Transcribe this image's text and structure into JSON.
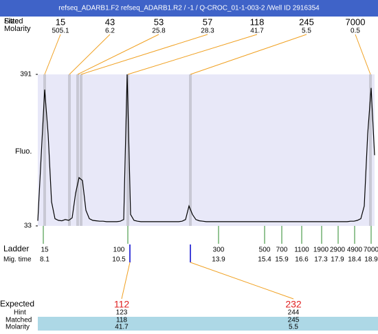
{
  "header": {
    "title": "refseq_ADARB1.F2  refseq_ADARB1.R2 / -1 / Q-CROC_01-1-003-2 /Well ID 2916354",
    "size_label": "Size",
    "fitted_label": "Fitted",
    "molarity_label": "Molarity"
  },
  "peaks": [
    {
      "size": 15,
      "molarity": 505.1
    },
    {
      "size": 43,
      "molarity": 6.2
    },
    {
      "size": 53,
      "molarity": 25.8
    },
    {
      "size": 57,
      "molarity": 28.3
    },
    {
      "size": 118,
      "molarity": 41.7
    },
    {
      "size": 245,
      "molarity": 5.5
    },
    {
      "size": 7000,
      "molarity": 0.5
    }
  ],
  "chart_data": {
    "type": "line",
    "y_label": "Fluo.",
    "ylim": [
      33,
      391
    ],
    "yticks": [
      33,
      391
    ],
    "color": "#000000",
    "values": [
      45,
      200,
      355,
      250,
      90,
      50,
      46,
      45,
      48,
      46,
      52,
      110,
      147,
      140,
      70,
      50,
      46,
      45,
      44,
      44,
      43,
      43,
      43,
      43,
      44,
      48,
      391,
      60,
      46,
      44,
      43,
      43,
      43,
      43,
      43,
      43,
      43,
      43,
      43,
      43,
      43,
      43,
      44,
      48,
      80,
      60,
      48,
      45,
      44,
      43,
      43,
      43,
      43,
      43,
      43,
      43,
      43,
      43,
      43,
      43,
      43,
      43,
      43,
      43,
      43,
      43,
      43,
      43,
      43,
      43,
      43,
      43,
      43,
      43,
      43,
      43,
      43,
      43,
      43,
      43,
      43,
      43,
      43,
      43,
      43,
      43,
      43,
      43,
      43,
      43,
      43,
      44,
      44,
      46,
      50,
      80,
      250,
      359,
      200
    ]
  },
  "ladder": {
    "label": "Ladder",
    "time_label": "Mig. time",
    "sizes": [
      15,
      100,
      300,
      500,
      700,
      1100,
      1900,
      2900,
      4900,
      7000
    ],
    "times": [
      8.1,
      10.5,
      13.9,
      15.4,
      15.9,
      16.6,
      17.3,
      17.9,
      18.4,
      18.9
    ]
  },
  "expected": {
    "label": "Expected",
    "hint_label": "Hint",
    "matched_label": "Matched",
    "molarity_label": "Molarity",
    "rows": [
      {
        "expected": 112,
        "hint": 123,
        "matched": 118,
        "molarity": 41.7
      },
      {
        "expected": 232,
        "hint": 244,
        "matched": 245,
        "molarity": 5.5
      }
    ]
  }
}
